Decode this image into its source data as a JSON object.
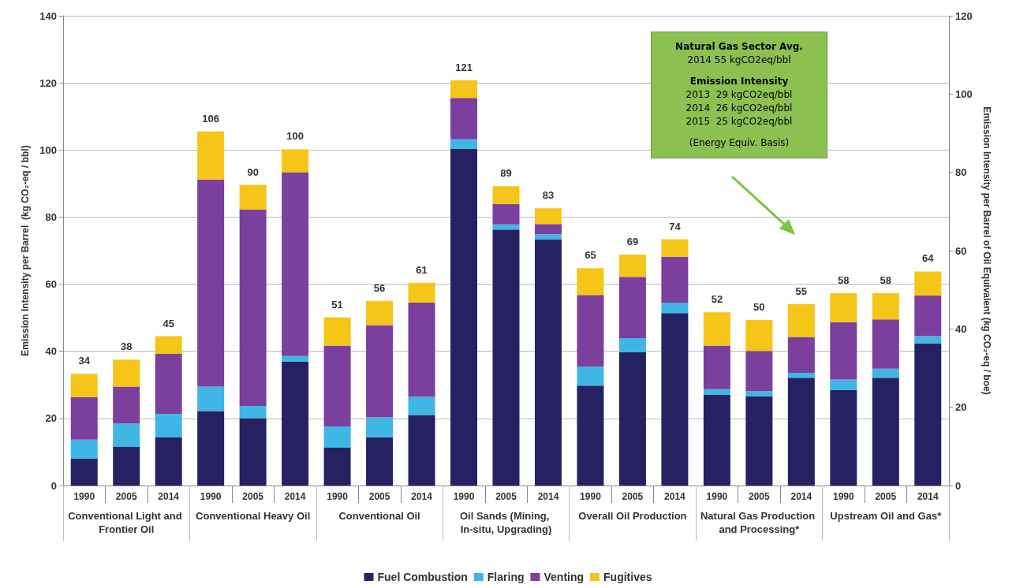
{
  "chart_data": {
    "type": "bar",
    "stacked": true,
    "ylabel": "Emission Intensity per Barrel  (kg CO₂-eq / bbl)",
    "y2label": "Emission Intensity per Barrel of Oil Equivalent (kg CO₂-eq / boe)",
    "categories": [
      "1990",
      "2005",
      "2014",
      "1990",
      "2005",
      "2014",
      "1990",
      "2005",
      "2014",
      "1990",
      "2005",
      "2014",
      "1990",
      "2005",
      "2014",
      "1990",
      "2005",
      "2014",
      "1990",
      "2005",
      "2014"
    ],
    "series": [
      {
        "name": "Fuel Combustion",
        "color": "#262262",
        "values": [
          8,
          11.5,
          14.3,
          22.2,
          20.1,
          36.9,
          11.3,
          14.4,
          21,
          100.3,
          76.3,
          73.4,
          29.8,
          39.7,
          51.4,
          27,
          26.6,
          32.1,
          28.4,
          32.1,
          42.4
        ]
      },
      {
        "name": "Flaring",
        "color": "#3fb6e6",
        "values": [
          5.7,
          7,
          7.1,
          7.3,
          3.6,
          1.7,
          6.3,
          5.9,
          5.4,
          2.9,
          1.5,
          1.5,
          5.6,
          4.2,
          3.1,
          1.7,
          1.5,
          1.5,
          3.2,
          2.7,
          2.1
        ]
      },
      {
        "name": "Venting",
        "color": "#7b3f9e",
        "values": [
          12.6,
          11,
          17.8,
          61.7,
          58.5,
          54.8,
          24.1,
          27.5,
          28.1,
          12.3,
          6.1,
          3,
          21.4,
          18.3,
          13.7,
          13,
          12,
          10.7,
          17.1,
          14.7,
          12.1
        ]
      },
      {
        "name": "Fugitives",
        "color": "#f5c518",
        "values": [
          7,
          8,
          5.3,
          14.3,
          7.4,
          6.8,
          8.4,
          7.2,
          5.9,
          5.3,
          5.3,
          4.7,
          8,
          6.6,
          5.2,
          9.9,
          9.2,
          9.8,
          8.6,
          7.8,
          7.2
        ]
      }
    ],
    "totals": [
      "34",
      "38",
      "45",
      "106",
      "90",
      "100",
      "51",
      "56",
      "61",
      "121",
      "89",
      "83",
      "65",
      "69",
      "74",
      "52",
      "50",
      "55",
      "58",
      "58",
      "64"
    ],
    "annotations": [
      "Conventional Light and Frontier Oil",
      "Conventional Heavy Oil",
      "Conventional Oil",
      "Oil Sands (Mining, In-situ, Upgrading)",
      "Overall Oil Production",
      "Natural Gas Production and Processing*",
      "Upstream Oil and Gas*",
      "Natural Gas Sector Avg.",
      "2014 55 kgCO2eq/bbl",
      "Emission Intensity",
      "2013  29 kgCO2eq/bbl",
      "2014  26 kgCO2eq/bbl",
      "2015  25 kgCO2eq/bbl",
      "(Energy Equiv. Basis)"
    ],
    "ylim": [
      0,
      140
    ],
    "yticks": [
      0,
      20,
      40,
      60,
      80,
      100,
      120,
      140
    ],
    "y2lim": [
      0,
      120
    ],
    "y2ticks": [
      0,
      20,
      40,
      60,
      80,
      100,
      120
    ],
    "grid": "y",
    "legend": "bottom"
  }
}
